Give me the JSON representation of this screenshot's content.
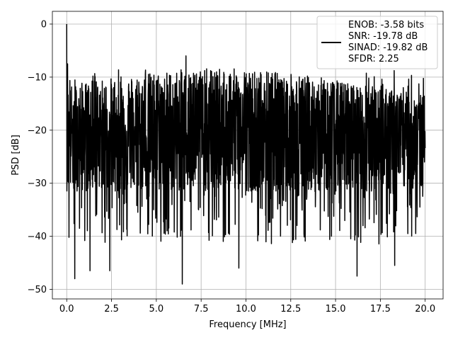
{
  "chart_data": {
    "type": "line",
    "title": "",
    "xlabel": "Frequency [MHz]",
    "ylabel": "PSD [dB]",
    "xlim": [
      -0.8,
      21.0
    ],
    "ylim": [
      -51.8,
      2.4
    ],
    "xticks": [
      0.0,
      2.5,
      5.0,
      7.5,
      10.0,
      12.5,
      15.0,
      17.5,
      20.0
    ],
    "xtick_labels": [
      "0.0",
      "2.5",
      "5.0",
      "7.5",
      "10.0",
      "12.5",
      "15.0",
      "17.5",
      "20.0"
    ],
    "yticks": [
      0,
      -10,
      -20,
      -30,
      -40,
      -50
    ],
    "ytick_labels": [
      "0",
      "−10",
      "−20",
      "−30",
      "−40",
      "−50"
    ],
    "grid": true,
    "legend_position": "top-right",
    "legend": [
      "ENOB: -3.58 bits",
      "SNR: -19.78 dB",
      "SINAD: -19.82 dB",
      "SFDR: 2.25"
    ],
    "series": [
      {
        "color": "#000000",
        "x_range": [
          0.0,
          20.0
        ],
        "noise_floor_mean_db": -20.5,
        "spectral_points": 2048,
        "peaks": [
          {
            "x": 0.0,
            "y": 0.0
          },
          {
            "x": 0.05,
            "y": -7.5
          },
          {
            "x": 0.1,
            "y": -16.5
          },
          {
            "x": 0.45,
            "y": -48.0
          },
          {
            "x": 1.3,
            "y": -46.5
          },
          {
            "x": 2.4,
            "y": -46.5
          },
          {
            "x": 6.45,
            "y": -49.0
          },
          {
            "x": 6.65,
            "y": -6.0
          },
          {
            "x": 9.6,
            "y": -46.0
          },
          {
            "x": 16.2,
            "y": -47.5
          },
          {
            "x": 18.3,
            "y": -45.5
          }
        ]
      }
    ]
  }
}
